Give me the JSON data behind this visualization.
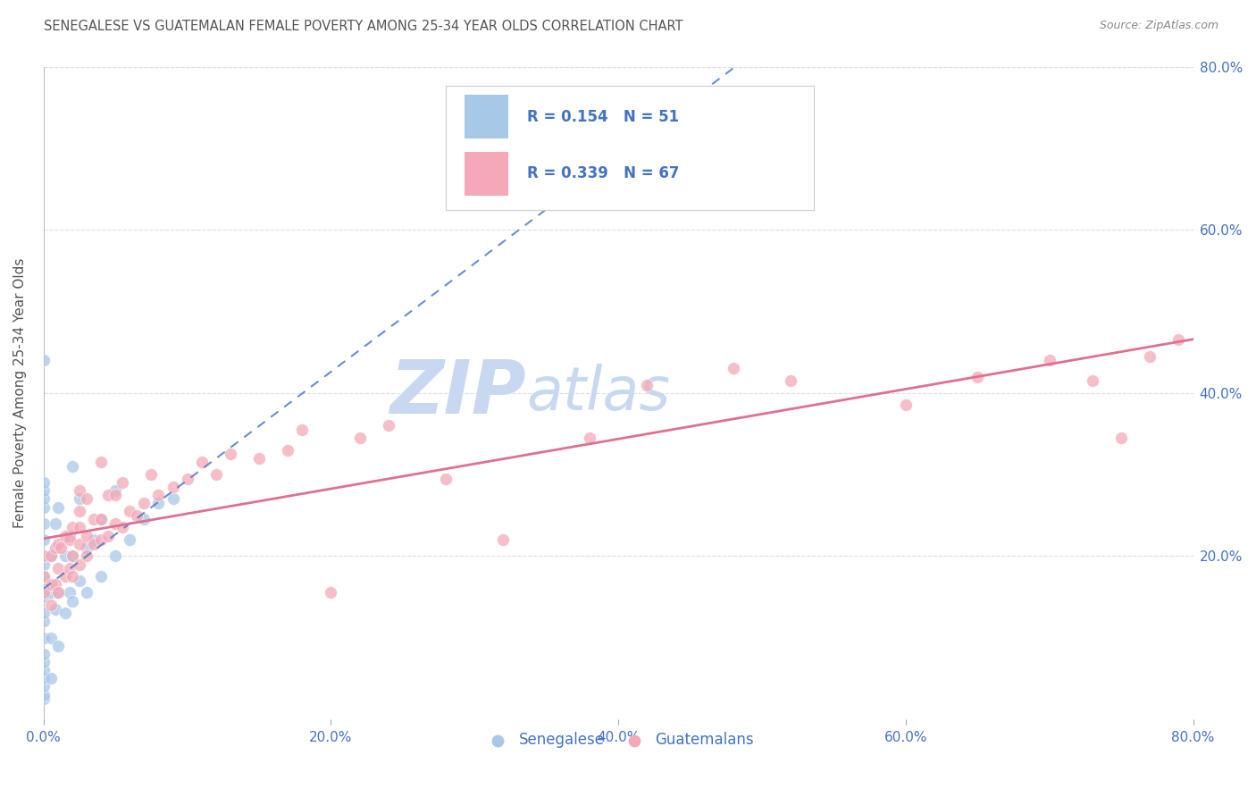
{
  "title": "SENEGALESE VS GUATEMALAN FEMALE POVERTY AMONG 25-34 YEAR OLDS CORRELATION CHART",
  "source": "Source: ZipAtlas.com",
  "ylabel": "Female Poverty Among 25-34 Year Olds",
  "xlim": [
    0.0,
    0.8
  ],
  "ylim": [
    0.0,
    0.8
  ],
  "xtick_vals": [
    0.0,
    0.2,
    0.4,
    0.6,
    0.8
  ],
  "xtick_labels": [
    "0.0%",
    "20.0%",
    "40.0%",
    "60.0%",
    "80.0%"
  ],
  "ytick_vals": [
    0.2,
    0.4,
    0.6,
    0.8
  ],
  "ytick_labels": [
    "20.0%",
    "40.0%",
    "60.0%",
    "80.0%"
  ],
  "senegalese_color": "#a8c8e8",
  "guatemalan_color": "#f4a8b8",
  "senegalese_line_color": "#4472c4",
  "guatemalan_line_color": "#e07090",
  "senegalese_R": 0.154,
  "senegalese_N": 51,
  "guatemalan_R": 0.339,
  "guatemalan_N": 67,
  "watermark_color": "#c8d8f0",
  "background_color": "#ffffff",
  "title_color": "#555555",
  "axis_label_color": "#555555",
  "grid_color": "#dddddd",
  "tick_label_color": "#4472c4",
  "senegalese_x": [
    0.0,
    0.0,
    0.0,
    0.0,
    0.0,
    0.0,
    0.0,
    0.0,
    0.0,
    0.0,
    0.0,
    0.0,
    0.0,
    0.0,
    0.0,
    0.0,
    0.0,
    0.0,
    0.0,
    0.0,
    0.0,
    0.0,
    0.005,
    0.005,
    0.005,
    0.005,
    0.008,
    0.008,
    0.01,
    0.01,
    0.01,
    0.015,
    0.015,
    0.018,
    0.018,
    0.02,
    0.02,
    0.02,
    0.025,
    0.025,
    0.03,
    0.03,
    0.035,
    0.04,
    0.04,
    0.05,
    0.05,
    0.06,
    0.07,
    0.08,
    0.09
  ],
  "senegalese_y": [
    0.025,
    0.03,
    0.04,
    0.05,
    0.06,
    0.07,
    0.08,
    0.1,
    0.12,
    0.13,
    0.15,
    0.16,
    0.175,
    0.19,
    0.2,
    0.22,
    0.24,
    0.26,
    0.27,
    0.28,
    0.29,
    0.44,
    0.05,
    0.1,
    0.155,
    0.2,
    0.135,
    0.24,
    0.09,
    0.155,
    0.26,
    0.13,
    0.2,
    0.155,
    0.225,
    0.145,
    0.2,
    0.31,
    0.17,
    0.27,
    0.155,
    0.21,
    0.22,
    0.175,
    0.245,
    0.2,
    0.28,
    0.22,
    0.245,
    0.265,
    0.27
  ],
  "guatemalan_x": [
    0.0,
    0.0,
    0.0,
    0.005,
    0.005,
    0.005,
    0.008,
    0.008,
    0.01,
    0.01,
    0.01,
    0.012,
    0.015,
    0.015,
    0.018,
    0.018,
    0.02,
    0.02,
    0.02,
    0.025,
    0.025,
    0.025,
    0.025,
    0.025,
    0.03,
    0.03,
    0.03,
    0.035,
    0.035,
    0.04,
    0.04,
    0.04,
    0.045,
    0.045,
    0.05,
    0.05,
    0.055,
    0.055,
    0.06,
    0.065,
    0.07,
    0.075,
    0.08,
    0.09,
    0.1,
    0.11,
    0.12,
    0.13,
    0.15,
    0.17,
    0.18,
    0.2,
    0.22,
    0.24,
    0.28,
    0.32,
    0.38,
    0.42,
    0.48,
    0.52,
    0.6,
    0.65,
    0.7,
    0.73,
    0.75,
    0.77,
    0.79
  ],
  "guatemalan_y": [
    0.155,
    0.175,
    0.2,
    0.14,
    0.165,
    0.2,
    0.165,
    0.21,
    0.155,
    0.185,
    0.215,
    0.21,
    0.175,
    0.225,
    0.185,
    0.22,
    0.175,
    0.2,
    0.235,
    0.19,
    0.215,
    0.235,
    0.255,
    0.28,
    0.2,
    0.225,
    0.27,
    0.215,
    0.245,
    0.22,
    0.245,
    0.315,
    0.225,
    0.275,
    0.24,
    0.275,
    0.235,
    0.29,
    0.255,
    0.25,
    0.265,
    0.3,
    0.275,
    0.285,
    0.295,
    0.315,
    0.3,
    0.325,
    0.32,
    0.33,
    0.355,
    0.155,
    0.345,
    0.36,
    0.295,
    0.22,
    0.345,
    0.41,
    0.43,
    0.415,
    0.385,
    0.42,
    0.44,
    0.415,
    0.345,
    0.445,
    0.465
  ]
}
